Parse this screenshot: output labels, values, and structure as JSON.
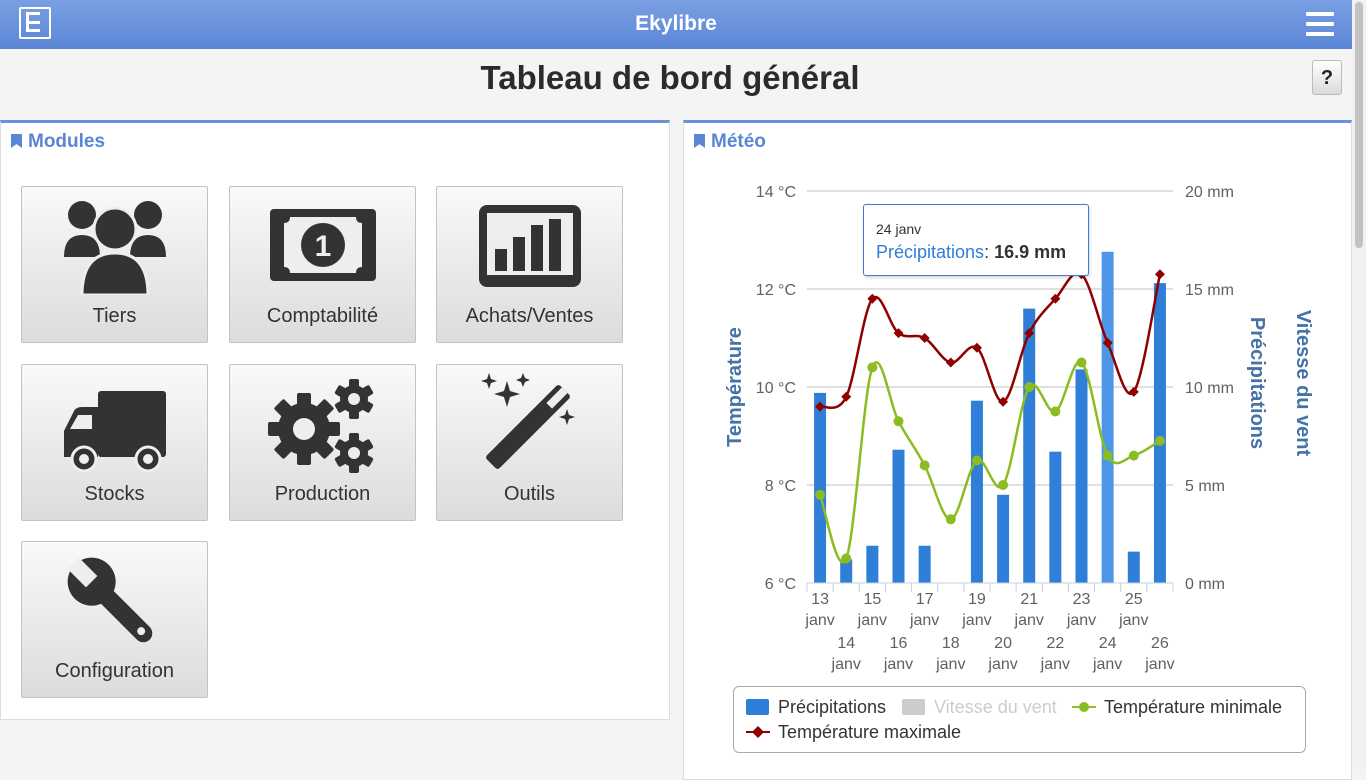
{
  "app": {
    "title": "Ekylibre"
  },
  "page": {
    "title": "Tableau de bord général",
    "help_label": "?"
  },
  "modules": {
    "title": "Modules",
    "tiles": [
      {
        "label": "Tiers",
        "icon": "users-icon"
      },
      {
        "label": "Comptabilité",
        "icon": "banknote-icon"
      },
      {
        "label": "Achats/Ventes",
        "icon": "bar-chart-icon"
      },
      {
        "label": "Stocks",
        "icon": "truck-icon"
      },
      {
        "label": "Production",
        "icon": "gears-icon"
      },
      {
        "label": "Outils",
        "icon": "magic-wand-icon"
      },
      {
        "label": "Configuration",
        "icon": "wrench-icon"
      }
    ]
  },
  "weather": {
    "title": "Météo",
    "tooltip": {
      "date": "24 janv",
      "series": "Précipitations",
      "value": "16.9 mm"
    },
    "legend": [
      {
        "label": "Précipitations",
        "color": "#2f7ed8",
        "active": true
      },
      {
        "label": "Vitesse du vent",
        "color": "#cccccc",
        "active": false
      },
      {
        "label": "Température minimale",
        "color": "#8bbc21",
        "active": true
      },
      {
        "label": "Température maximale",
        "color": "#910000",
        "active": true
      }
    ]
  },
  "colors": {
    "accent": "#5b86d6",
    "precip": "#2f7ed8",
    "tmin": "#8bbc21",
    "tmax": "#910000"
  },
  "chart_data": {
    "type": "bar",
    "categories": [
      "13 janv",
      "14 janv",
      "15 janv",
      "16 janv",
      "17 janv",
      "18 janv",
      "19 janv",
      "20 janv",
      "21 janv",
      "22 janv",
      "23 janv",
      "24 janv",
      "25 janv",
      "26 janv"
    ],
    "y_left": {
      "title": "Température",
      "min": 6,
      "max": 14,
      "ticks": [
        "6 °C",
        "8 °C",
        "10 °C",
        "12 °C",
        "14 °C"
      ]
    },
    "y_right_1": {
      "title": "Précipitations",
      "min": 0,
      "max": 20,
      "ticks": [
        "0 mm",
        "5 mm",
        "10 mm",
        "15 mm",
        "20 mm"
      ]
    },
    "y_right_2": {
      "title": "Vitesse du vent"
    },
    "grid": true,
    "series": [
      {
        "name": "Précipitations",
        "type": "column",
        "axis": "right",
        "unit": "mm",
        "values": [
          9.7,
          1.2,
          1.9,
          6.8,
          1.9,
          0,
          9.3,
          4.5,
          14,
          6.7,
          10.9,
          16.9,
          1.6,
          15.3
        ]
      },
      {
        "name": "Température minimale",
        "type": "spline",
        "axis": "left",
        "unit": "°C",
        "values": [
          7.8,
          6.5,
          10.4,
          9.3,
          8.4,
          7.3,
          8.5,
          8.0,
          10.0,
          9.5,
          10.5,
          8.6,
          8.6,
          8.9
        ]
      },
      {
        "name": "Température maximale",
        "type": "spline",
        "axis": "left",
        "unit": "°C",
        "values": [
          9.6,
          9.8,
          11.8,
          11.1,
          11.0,
          10.5,
          10.8,
          9.7,
          11.1,
          11.8,
          12.3,
          10.9,
          9.9,
          12.3
        ]
      }
    ]
  }
}
